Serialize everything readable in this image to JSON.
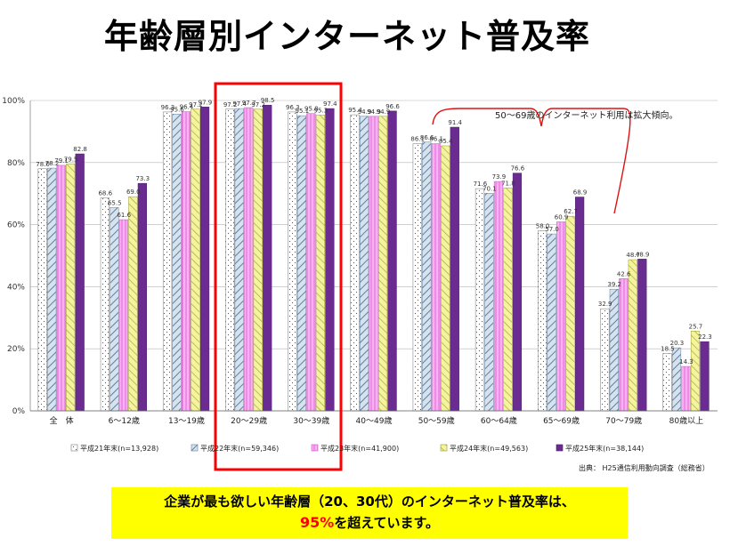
{
  "title": "年齢層別インターネット普及率",
  "note": "50～69歳のインターネット利用は拡大傾向。",
  "source": "出典： H25通信利用動向調査（総務省）",
  "footer": {
    "line1": "企業が最も欲しい年齢層（20、30代）のインターネット普及率は、",
    "line2_highlight": "95%",
    "line2_rest": "を超えています。"
  },
  "colors": {
    "s1": "#ffffff",
    "s2": "#b9cde0",
    "s3": "#f5a0f0",
    "s4": "#f2f28a",
    "s5": "#6a2c91",
    "highlight_box": "#ff0000",
    "brace": "#e01010",
    "footer_bg": "#ffff00"
  },
  "chart_data": {
    "type": "bar",
    "categories": [
      "全　体",
      "6～12歳",
      "13～19歳",
      "20～29歳",
      "30～39歳",
      "40～49歳",
      "50～59歳",
      "60～64歳",
      "65～69歳",
      "70～79歳",
      "80歳以上"
    ],
    "series": [
      {
        "name": "平成21年末(n=13,928)",
        "values": [
          78.0,
          68.6,
          96.3,
          97.2,
          96.3,
          95.4,
          86.1,
          71.6,
          58.0,
          32.9,
          18.5
        ]
      },
      {
        "name": "平成22年末(n=59,346)",
        "values": [
          78.2,
          65.5,
          95.6,
          97.4,
          95.1,
          94.9,
          86.6,
          70.1,
          57.0,
          39.2,
          20.3
        ]
      },
      {
        "name": "平成23年末(n=41,900)",
        "values": [
          79.1,
          61.6,
          96.4,
          97.7,
          95.8,
          94.9,
          86.1,
          73.9,
          60.9,
          42.6,
          14.3
        ]
      },
      {
        "name": "平成24年末(n=49,563)",
        "values": [
          79.5,
          69.0,
          97.2,
          97.2,
          95.3,
          94.9,
          85.4,
          71.8,
          62.7,
          48.7,
          25.7
        ]
      },
      {
        "name": "平成25年末(n=38,144)",
        "values": [
          82.8,
          73.3,
          97.9,
          98.5,
          97.4,
          96.6,
          91.4,
          76.6,
          68.9,
          48.9,
          22.3
        ]
      }
    ],
    "value_labels": [
      [
        "78.0",
        "78.2",
        "79.1",
        "79.5",
        "82.8"
      ],
      [
        "68.6",
        "65.5",
        "61.6",
        "69.0",
        "73.3"
      ],
      [
        "96.3",
        "95.6",
        "96.4",
        "97.2",
        "97.9"
      ],
      [
        "97.2",
        "97.4",
        "97.7",
        "97.2",
        "98.5"
      ],
      [
        "96.3",
        "95.1",
        "95.8",
        "95.3",
        "97.4"
      ],
      [
        "95.4",
        "94.9",
        "94.9",
        "94.9",
        "96.6"
      ],
      [
        "86.1",
        "86.6",
        "86.1",
        "85.4",
        "91.4"
      ],
      [
        "71.6",
        "70.1",
        "73.9",
        "71.8",
        "76.6"
      ],
      [
        "58.0",
        "57.0",
        "60.9",
        "62.7",
        "68.9"
      ],
      [
        "32.9",
        "39.2",
        "42.6",
        "48.7",
        "48.9"
      ],
      [
        "18.5",
        "20.3",
        "14.3",
        "25.7",
        "22.3"
      ]
    ],
    "yticks": [
      "0%",
      "20%",
      "40%",
      "60%",
      "80%",
      "100%"
    ],
    "ylim": [
      0,
      100
    ],
    "legend_position": "bottom",
    "highlighted_categories": [
      "20～29歳",
      "30～39歳"
    ],
    "bracketed_categories": [
      "50～59歳",
      "60～64歳",
      "65～69歳"
    ]
  }
}
